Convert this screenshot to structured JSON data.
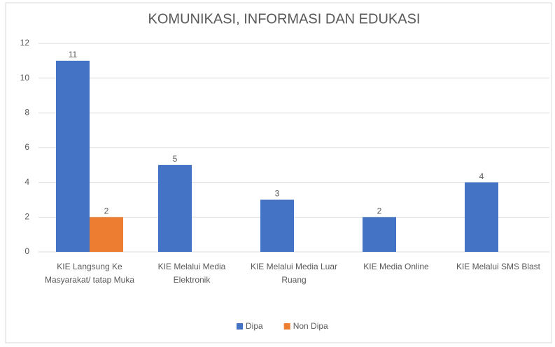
{
  "chart_data": {
    "type": "bar",
    "title": "KOMUNIKASI, INFORMASI DAN EDUKASI",
    "categories": [
      "KIE Langsung Ke Masyarakat/ tatap Muka",
      "KIE Melalui Media Elektronik",
      "KIE Melalui Media Luar Ruang",
      "KIE Media Online",
      "KIE Melalui SMS Blast"
    ],
    "series": [
      {
        "name": "Dipa",
        "color": "#4472c4",
        "values": [
          11,
          5,
          3,
          2,
          4
        ]
      },
      {
        "name": "Non Dipa",
        "color": "#ed7d31",
        "values": [
          2,
          null,
          null,
          null,
          null
        ]
      }
    ],
    "ylim": [
      0,
      12
    ],
    "yticks": [
      0,
      2,
      4,
      6,
      8,
      10,
      12
    ],
    "grid": true,
    "legend": "bottom"
  }
}
